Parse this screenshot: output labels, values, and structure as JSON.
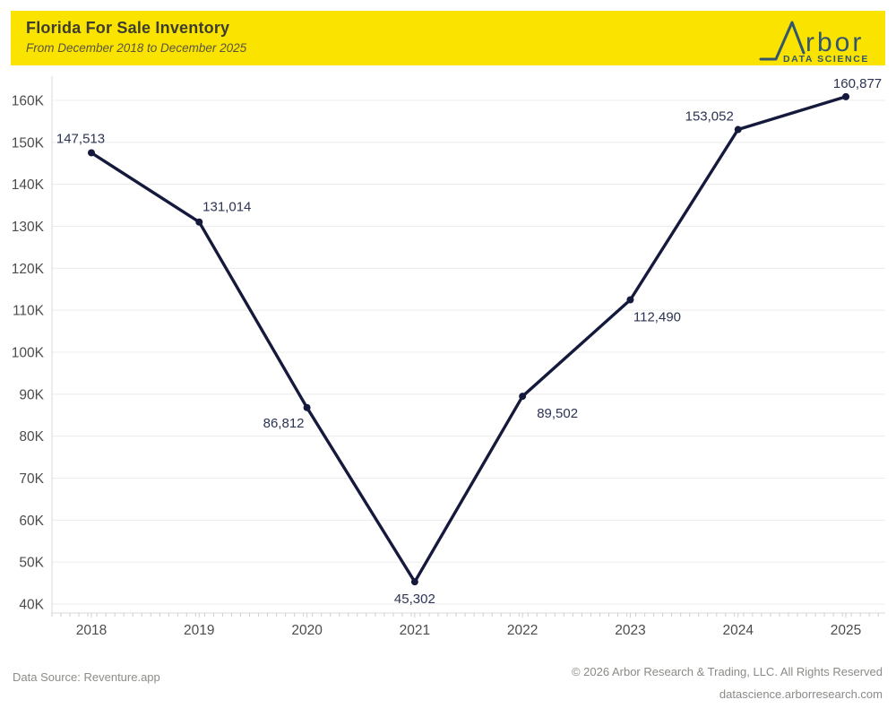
{
  "header": {
    "title": "Florida For Sale Inventory",
    "subtitle": "From December 2018 to December 2025",
    "background_color": "#fbe300"
  },
  "logo": {
    "text": "Arbor",
    "display_suffix": "rbor",
    "tagline": "DATA SCIENCE",
    "color": "#33566e"
  },
  "chart_data": {
    "type": "line",
    "title": "Florida For Sale Inventory",
    "subtitle": "From December 2018 to December 2025",
    "categories": [
      "2018",
      "2019",
      "2020",
      "2021",
      "2022",
      "2023",
      "2024",
      "2025"
    ],
    "values": [
      147513,
      131014,
      86812,
      45302,
      89502,
      112490,
      153052,
      160877
    ],
    "point_labels": [
      "147,513",
      "131,014",
      "86,812",
      "45,302",
      "89,502",
      "112,490",
      "153,052",
      "160,877"
    ],
    "xlabel": "",
    "ylabel": "",
    "ylim": [
      40000,
      160000
    ],
    "y_tick_values": [
      40000,
      50000,
      60000,
      70000,
      80000,
      90000,
      100000,
      110000,
      120000,
      130000,
      140000,
      150000,
      160000
    ],
    "y_tick_labels": [
      "40K",
      "50K",
      "60K",
      "70K",
      "80K",
      "90K",
      "100K",
      "110K",
      "120K",
      "130K",
      "140K",
      "150K",
      "160K"
    ],
    "grid": "horizontal",
    "legend": "none",
    "line_color": "#151a3d",
    "point_color": "#151a3d",
    "data_label_color": "#2c3352",
    "axis_label_color": "#4c4c4c",
    "gridline_color": "#ececec",
    "axis_line_color": "#d9d9d9",
    "tick_color": "#cfcfcf"
  },
  "footer": {
    "source": "Data Source: Reventure.app",
    "copyright": "© 2026 Arbor Research & Trading, LLC. All Rights Reserved",
    "website": "datascience.arborresearch.com"
  }
}
